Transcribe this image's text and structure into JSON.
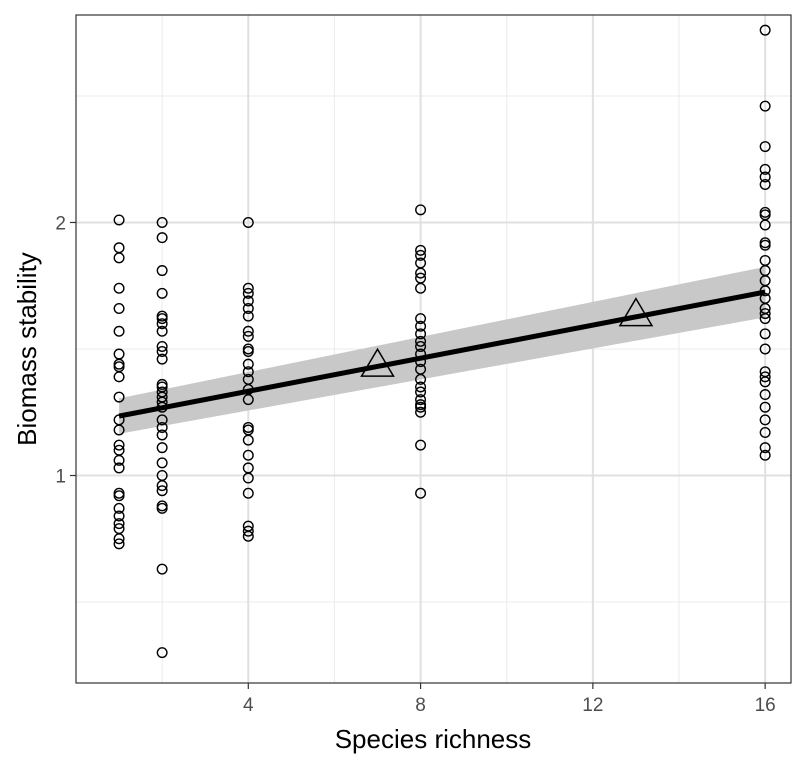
{
  "chart_data": {
    "type": "scatter",
    "xlabel": "Species richness",
    "ylabel": "Biomass stability",
    "xlim": [
      0,
      16.6
    ],
    "ylim": [
      0.18,
      2.82
    ],
    "x_ticks": [
      4,
      8,
      12,
      16
    ],
    "x_tick_labels": [
      "4",
      "8",
      "12",
      "16"
    ],
    "x_minor_ticks": [
      2,
      6,
      10,
      14
    ],
    "y_ticks": [
      1,
      2
    ],
    "y_tick_labels": [
      "1",
      "2"
    ],
    "y_minor_ticks": [
      0.5,
      1.5,
      2.5
    ],
    "grid": true,
    "theme": "bw",
    "series": [
      {
        "marker": "circle-open",
        "points": [
          [
            1,
            2.01
          ],
          [
            1,
            1.9
          ],
          [
            1,
            1.86
          ],
          [
            1,
            1.74
          ],
          [
            1,
            1.66
          ],
          [
            1,
            1.57
          ],
          [
            1,
            1.48
          ],
          [
            1,
            1.44
          ],
          [
            1,
            1.43
          ],
          [
            1,
            1.39
          ],
          [
            1,
            1.31
          ],
          [
            1,
            1.22
          ],
          [
            1,
            1.18
          ],
          [
            1,
            1.12
          ],
          [
            1,
            1.1
          ],
          [
            1,
            1.06
          ],
          [
            1,
            1.03
          ],
          [
            1,
            0.93
          ],
          [
            1,
            0.92
          ],
          [
            1,
            0.87
          ],
          [
            1,
            0.84
          ],
          [
            1,
            0.81
          ],
          [
            1,
            0.79
          ],
          [
            1,
            0.75
          ],
          [
            1,
            0.73
          ],
          [
            2,
            2.0
          ],
          [
            2,
            1.94
          ],
          [
            2,
            1.81
          ],
          [
            2,
            1.72
          ],
          [
            2,
            1.63
          ],
          [
            2,
            1.62
          ],
          [
            2,
            1.6
          ],
          [
            2,
            1.57
          ],
          [
            2,
            1.51
          ],
          [
            2,
            1.49
          ],
          [
            2,
            1.46
          ],
          [
            2,
            1.36
          ],
          [
            2,
            1.35
          ],
          [
            2,
            1.33
          ],
          [
            2,
            1.31
          ],
          [
            2,
            1.29
          ],
          [
            2,
            1.27
          ],
          [
            2,
            1.22
          ],
          [
            2,
            1.19
          ],
          [
            2,
            1.16
          ],
          [
            2,
            1.11
          ],
          [
            2,
            1.05
          ],
          [
            2,
            1.0
          ],
          [
            2,
            0.96
          ],
          [
            2,
            0.94
          ],
          [
            2,
            0.88
          ],
          [
            2,
            0.87
          ],
          [
            2,
            0.63
          ],
          [
            2,
            0.3
          ],
          [
            4,
            2.0
          ],
          [
            4,
            1.74
          ],
          [
            4,
            1.72
          ],
          [
            4,
            1.69
          ],
          [
            4,
            1.66
          ],
          [
            4,
            1.63
          ],
          [
            4,
            1.57
          ],
          [
            4,
            1.55
          ],
          [
            4,
            1.5
          ],
          [
            4,
            1.49
          ],
          [
            4,
            1.44
          ],
          [
            4,
            1.41
          ],
          [
            4,
            1.38
          ],
          [
            4,
            1.34
          ],
          [
            4,
            1.3
          ],
          [
            4,
            1.19
          ],
          [
            4,
            1.18
          ],
          [
            4,
            1.14
          ],
          [
            4,
            1.08
          ],
          [
            4,
            1.03
          ],
          [
            4,
            0.99
          ],
          [
            4,
            0.93
          ],
          [
            4,
            0.8
          ],
          [
            4,
            0.78
          ],
          [
            4,
            0.76
          ],
          [
            8,
            2.05
          ],
          [
            8,
            1.89
          ],
          [
            8,
            1.87
          ],
          [
            8,
            1.84
          ],
          [
            8,
            1.8
          ],
          [
            8,
            1.78
          ],
          [
            8,
            1.74
          ],
          [
            8,
            1.62
          ],
          [
            8,
            1.59
          ],
          [
            8,
            1.56
          ],
          [
            8,
            1.53
          ],
          [
            8,
            1.51
          ],
          [
            8,
            1.48
          ],
          [
            8,
            1.45
          ],
          [
            8,
            1.42
          ],
          [
            8,
            1.38
          ],
          [
            8,
            1.35
          ],
          [
            8,
            1.33
          ],
          [
            8,
            1.3
          ],
          [
            8,
            1.28
          ],
          [
            8,
            1.27
          ],
          [
            8,
            1.25
          ],
          [
            8,
            1.12
          ],
          [
            8,
            0.93
          ],
          [
            16,
            2.76
          ],
          [
            16,
            2.46
          ],
          [
            16,
            2.3
          ],
          [
            16,
            2.21
          ],
          [
            16,
            2.18
          ],
          [
            16,
            2.15
          ],
          [
            16,
            2.04
          ],
          [
            16,
            2.03
          ],
          [
            16,
            1.99
          ],
          [
            16,
            1.92
          ],
          [
            16,
            1.91
          ],
          [
            16,
            1.85
          ],
          [
            16,
            1.81
          ],
          [
            16,
            1.77
          ],
          [
            16,
            1.73
          ],
          [
            16,
            1.7
          ],
          [
            16,
            1.66
          ],
          [
            16,
            1.64
          ],
          [
            16,
            1.62
          ],
          [
            16,
            1.56
          ],
          [
            16,
            1.5
          ],
          [
            16,
            1.41
          ],
          [
            16,
            1.39
          ],
          [
            16,
            1.37
          ],
          [
            16,
            1.32
          ],
          [
            16,
            1.27
          ],
          [
            16,
            1.22
          ],
          [
            16,
            1.17
          ],
          [
            16,
            1.11
          ],
          [
            16,
            1.08
          ]
        ]
      },
      {
        "marker": "triangle-open",
        "points": [
          [
            7,
            1.44
          ],
          [
            13,
            1.64
          ]
        ]
      }
    ],
    "fit_line": {
      "x": [
        1,
        16
      ],
      "y": [
        1.235,
        1.725
      ],
      "ribbon_lower": [
        1.165,
        1.625
      ],
      "ribbon_upper": [
        1.305,
        1.825
      ],
      "ribbon_color": "#c8c8c8",
      "line_color": "#000000"
    }
  }
}
